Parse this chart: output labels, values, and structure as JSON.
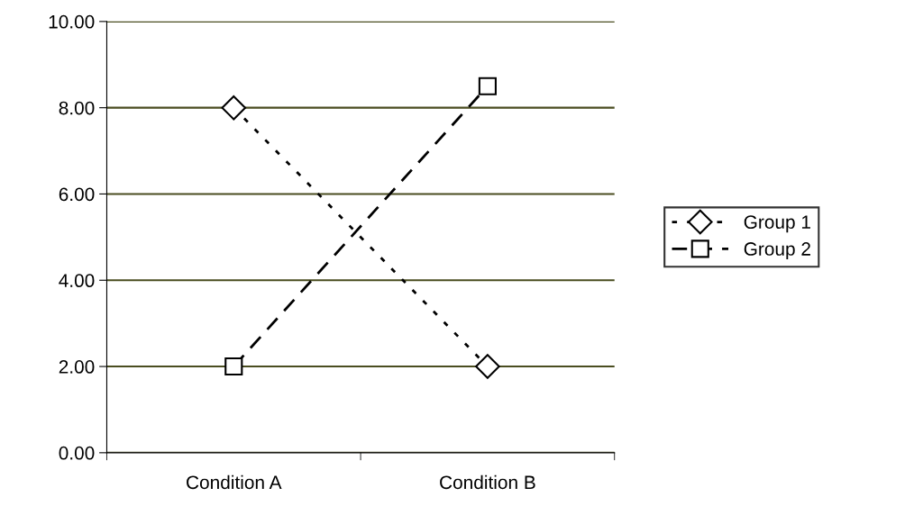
{
  "chart_data": {
    "type": "line",
    "categories": [
      "Condition A",
      "Condition B"
    ],
    "series": [
      {
        "name": "Group 1",
        "color": "#000000",
        "values": [
          8,
          2
        ],
        "marker": "diamond",
        "line_style": "dotted"
      },
      {
        "name": "Group 2",
        "color": "#000000",
        "values": [
          2,
          8.5
        ],
        "marker": "square",
        "line_style": "dashed"
      }
    ],
    "ylim": [
      0,
      10
    ],
    "yticks": [
      {
        "value": 0,
        "label": "0.00"
      },
      {
        "value": 2,
        "label": "2.00"
      },
      {
        "value": 4,
        "label": "4.00"
      },
      {
        "value": 6,
        "label": "6.00"
      },
      {
        "value": 8,
        "label": "8.00"
      },
      {
        "value": 10,
        "label": "10.00"
      }
    ],
    "grid": "y",
    "legend": "right"
  }
}
